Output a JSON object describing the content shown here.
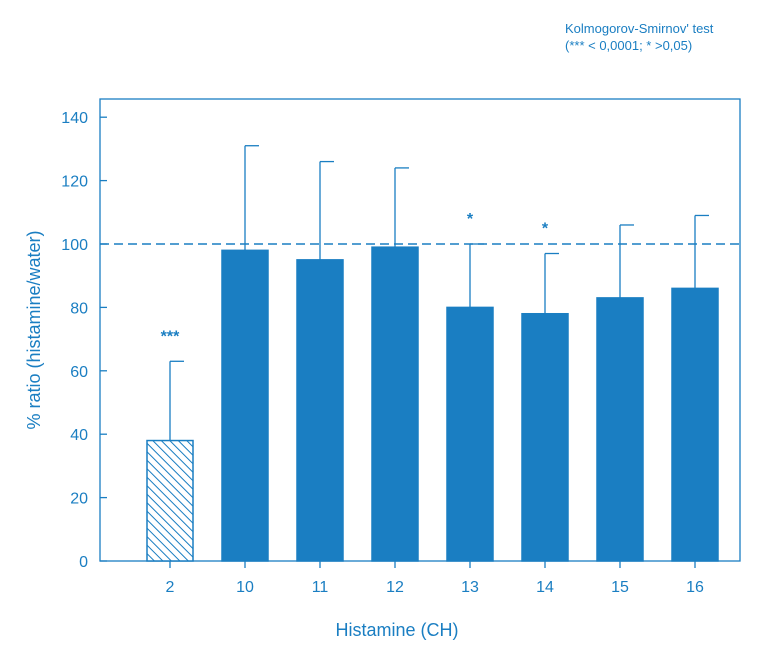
{
  "note": {
    "line1": "Kolmogorov-Smirnov' test",
    "line2": "(*** < 0,0001; * >0,05)"
  },
  "colors": {
    "primary": "#1a7ec2",
    "background": "#ffffff"
  },
  "chart_data": {
    "type": "bar",
    "title": "",
    "xlabel": "Histamine (CH)",
    "ylabel": "% ratio (histamine/water)",
    "categories": [
      "2",
      "10",
      "11",
      "12",
      "13",
      "14",
      "15",
      "16"
    ],
    "values": [
      38,
      98,
      95,
      99,
      80,
      78,
      83,
      86
    ],
    "errors_upper": [
      25,
      33,
      31,
      25,
      20,
      19,
      23,
      23
    ],
    "significance": [
      "***",
      "",
      "",
      "",
      "*",
      "*",
      "",
      ""
    ],
    "bar_styles": [
      "hatched",
      "solid",
      "solid",
      "solid",
      "solid",
      "solid",
      "solid",
      "solid"
    ],
    "reference_line": 100,
    "ylim": [
      0,
      150
    ],
    "yticks": [
      0,
      20,
      40,
      60,
      80,
      100,
      120,
      140
    ],
    "grid": false,
    "legend": "none"
  }
}
